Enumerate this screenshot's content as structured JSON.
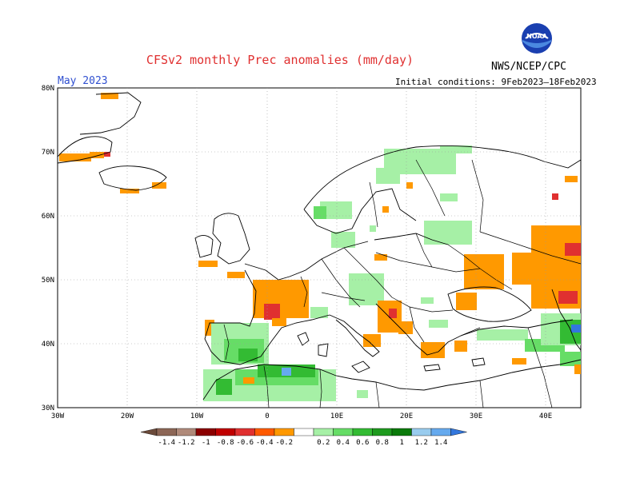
{
  "header": {
    "title": "CFSv2 monthly Prec anomalies (mm/day)",
    "agency": "NWS/NCEP/CPC",
    "logo_text": "NOAA",
    "month": "May 2023",
    "initial_conditions": "Initial conditions: 9Feb2023–18Feb2023"
  },
  "map": {
    "lat_labels": [
      "80N",
      "70N",
      "60N",
      "50N",
      "40N",
      "30N"
    ],
    "lon_labels": [
      "30W",
      "20W",
      "10W",
      "0",
      "10E",
      "20E",
      "30E",
      "40E"
    ],
    "lon_range": [
      -30,
      45
    ],
    "lat_range": [
      30,
      80
    ],
    "grid": true
  },
  "legend": {
    "ticks": [
      "-1.4",
      "-1.2",
      "-1",
      "-0.8",
      "-0.6",
      "-0.4",
      "-0.2",
      "0.2",
      "0.4",
      "0.6",
      "0.8",
      "1",
      "1.2",
      "1.4"
    ],
    "colors": [
      "#6b4a3a",
      "#8c6656",
      "#b08a7a",
      "#8b0000",
      "#c00000",
      "#e03030",
      "#ff5a00",
      "#ff9900",
      "#ffffff",
      "#a6f0a6",
      "#66dd66",
      "#33bb33",
      "#1e9a1e",
      "#0a7a0a",
      "#99ccee",
      "#66aaee",
      "#3377dd"
    ]
  },
  "anomaly_regions": [
    {
      "region": "Southern Greenland coast",
      "lon": [
        -29,
        -23
      ],
      "lat": [
        67,
        70
      ],
      "level": -0.3
    },
    {
      "region": "Iceland south",
      "lon": [
        -20,
        -15
      ],
      "lat": [
        63,
        64
      ],
      "level": -0.3
    },
    {
      "region": "Norway / Scandinavia",
      "lon": [
        5,
        30
      ],
      "lat": [
        60,
        71
      ],
      "level": 0.3
    },
    {
      "region": "Baltic region",
      "lon": [
        22,
        28
      ],
      "lat": [
        55,
        58
      ],
      "level": 0.3
    },
    {
      "region": "France",
      "lon": [
        -1,
        7
      ],
      "lat": [
        43,
        48
      ],
      "level": -0.4
    },
    {
      "region": "Southwest France",
      "lon": [
        0,
        2
      ],
      "lat": [
        43,
        45
      ],
      "level": -0.6
    },
    {
      "region": "Iberian Peninsula",
      "lon": [
        -8,
        0
      ],
      "lat": [
        37,
        42
      ],
      "level": 0.5
    },
    {
      "region": "Northwest Africa",
      "lon": [
        -5,
        10
      ],
      "lat": [
        31,
        36
      ],
      "level": 0.6
    },
    {
      "region": "Italy / Balkans",
      "lon": [
        12,
        19
      ],
      "lat": [
        41,
        45
      ],
      "level": -0.4
    },
    {
      "region": "Western Russia",
      "lon": [
        28,
        45
      ],
      "lat": [
        46,
        57
      ],
      "level": -0.3
    },
    {
      "region": "Ural / Volga",
      "lon": [
        42,
        45
      ],
      "lat": [
        47,
        53
      ],
      "level": -0.6
    },
    {
      "region": "Caucasus",
      "lon": [
        40,
        45
      ],
      "lat": [
        39,
        43
      ],
      "level": 0.6
    }
  ]
}
